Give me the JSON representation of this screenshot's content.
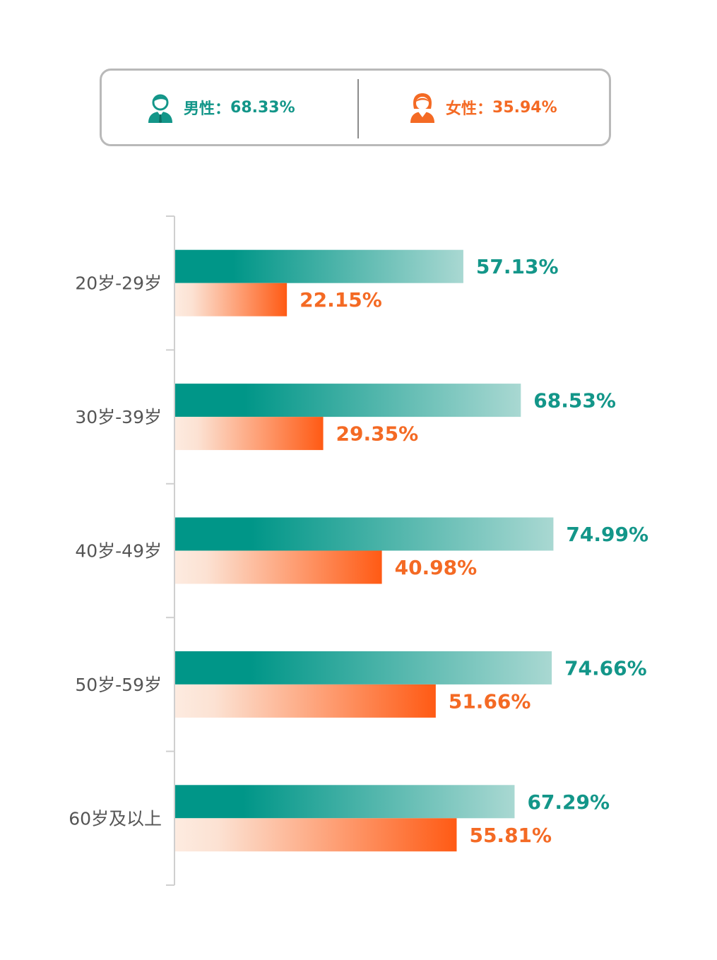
{
  "legend": {
    "male": {
      "label": "男性：",
      "value": "68.33%",
      "icon": "male-user-icon",
      "color": "#139689"
    },
    "female": {
      "label": "女性：",
      "value": "35.94%",
      "icon": "female-user-icon",
      "color": "#f46a24"
    }
  },
  "chart_data": {
    "type": "bar",
    "orientation": "horizontal",
    "title": "",
    "xlabel": "",
    "ylabel": "",
    "grid": false,
    "xlim": [
      0,
      100
    ],
    "categories": [
      "20岁-29岁",
      "30岁-39岁",
      "40岁-49岁",
      "50岁-59岁",
      "60岁及以上"
    ],
    "series": [
      {
        "name": "男性",
        "color": "#009688",
        "values": [
          57.13,
          68.53,
          74.99,
          74.66,
          67.29
        ],
        "labels": [
          "57.13%",
          "68.53%",
          "74.99%",
          "74.66%",
          "67.29%"
        ]
      },
      {
        "name": "女性",
        "color": "#ff5a14",
        "values": [
          22.15,
          29.35,
          40.98,
          51.66,
          55.81
        ],
        "labels": [
          "22.15%",
          "29.35%",
          "40.98%",
          "51.66%",
          "55.81%"
        ]
      }
    ]
  }
}
